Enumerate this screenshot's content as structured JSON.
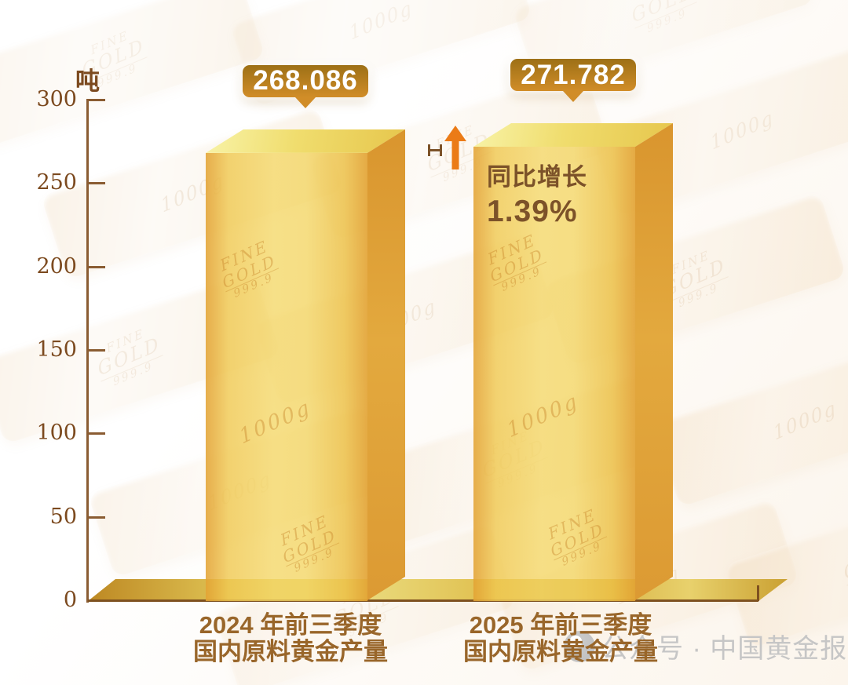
{
  "chart_data": {
    "type": "bar",
    "title": "",
    "unit_label": "吨",
    "categories": [
      [
        "2024 年前三季度",
        "国内原料黄金产量"
      ],
      [
        "2025 年前三季度",
        "国内原料黄金产量"
      ]
    ],
    "values": [
      268.086,
      271.782
    ],
    "value_labels": [
      "268.086",
      "271.782"
    ],
    "ylim": [
      0,
      300
    ],
    "yticks": [
      0,
      50,
      100,
      150,
      200,
      250,
      300
    ],
    "grid": false,
    "legend": "none",
    "annotation": {
      "label": "同比增长",
      "value": "1.39%",
      "direction": "up"
    },
    "colors": {
      "axis_line": "#8a5c32",
      "axis_text": "#7c4a1f",
      "category_text": "#99662a",
      "annotation": "#7c5229",
      "arrow": "#eb7b17",
      "callout_top": "#9d7016",
      "callout_bottom": "#d18d28",
      "bar_front": "#f0cd5e",
      "bar_side": "#dd9a33",
      "bar_top": "#f4e98f",
      "watermark": "#c6c6c6"
    }
  },
  "background_texture": {
    "brand_line1": "FINE",
    "brand_line2": "GOLD",
    "purity": "999.9",
    "weight": "1000g"
  },
  "watermark": {
    "logo": "china-gold-news-logo",
    "text": "公众号 · 中国黄金报"
  }
}
